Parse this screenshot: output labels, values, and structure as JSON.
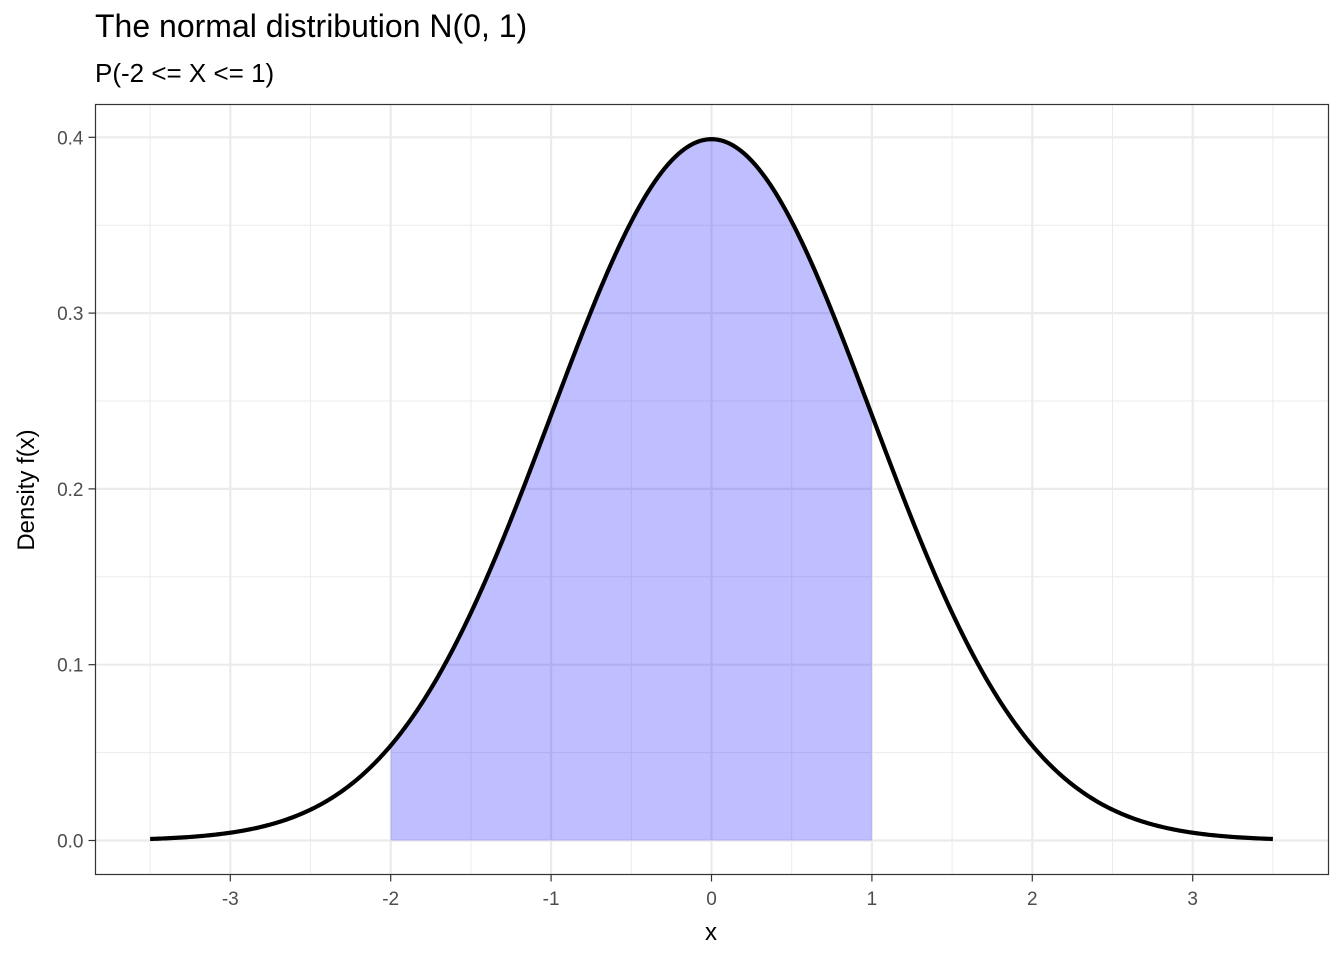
{
  "chart_data": {
    "type": "area",
    "title": "The normal distribution N(0, 1)",
    "subtitle": "P(-2 <= X <= 1)",
    "xlabel": "x",
    "ylabel": "Density f(x)",
    "distribution": {
      "mean": 0,
      "sd": 1
    },
    "xlim": [
      -3.5,
      3.5
    ],
    "ylim": [
      0,
      0.4
    ],
    "x_ticks": [
      -3,
      -2,
      -1,
      0,
      1,
      2,
      3
    ],
    "x_tick_labels": [
      "-3",
      "-2",
      "-1",
      "0",
      "1",
      "2",
      "3"
    ],
    "y_ticks": [
      0,
      0.1,
      0.2,
      0.3,
      0.4
    ],
    "y_tick_labels": [
      "0.0",
      "0.1",
      "0.2",
      "0.3",
      "0.4"
    ],
    "shaded_interval": [
      -2,
      1
    ],
    "x": [
      -3.5,
      -3.0,
      -2.5,
      -2.0,
      -1.5,
      -1.0,
      -0.5,
      0.0,
      0.5,
      1.0,
      1.5,
      2.0,
      2.5,
      3.0,
      3.5
    ],
    "y": [
      0.0009,
      0.0044,
      0.0175,
      0.054,
      0.1295,
      0.242,
      0.3521,
      0.3989,
      0.3521,
      0.242,
      0.1295,
      0.054,
      0.0175,
      0.0044,
      0.0009
    ],
    "grid": true,
    "colors": {
      "curve": "#000000",
      "fill": "#0000ff",
      "grid": "#ebebeb",
      "panel_border": "#333333"
    }
  }
}
